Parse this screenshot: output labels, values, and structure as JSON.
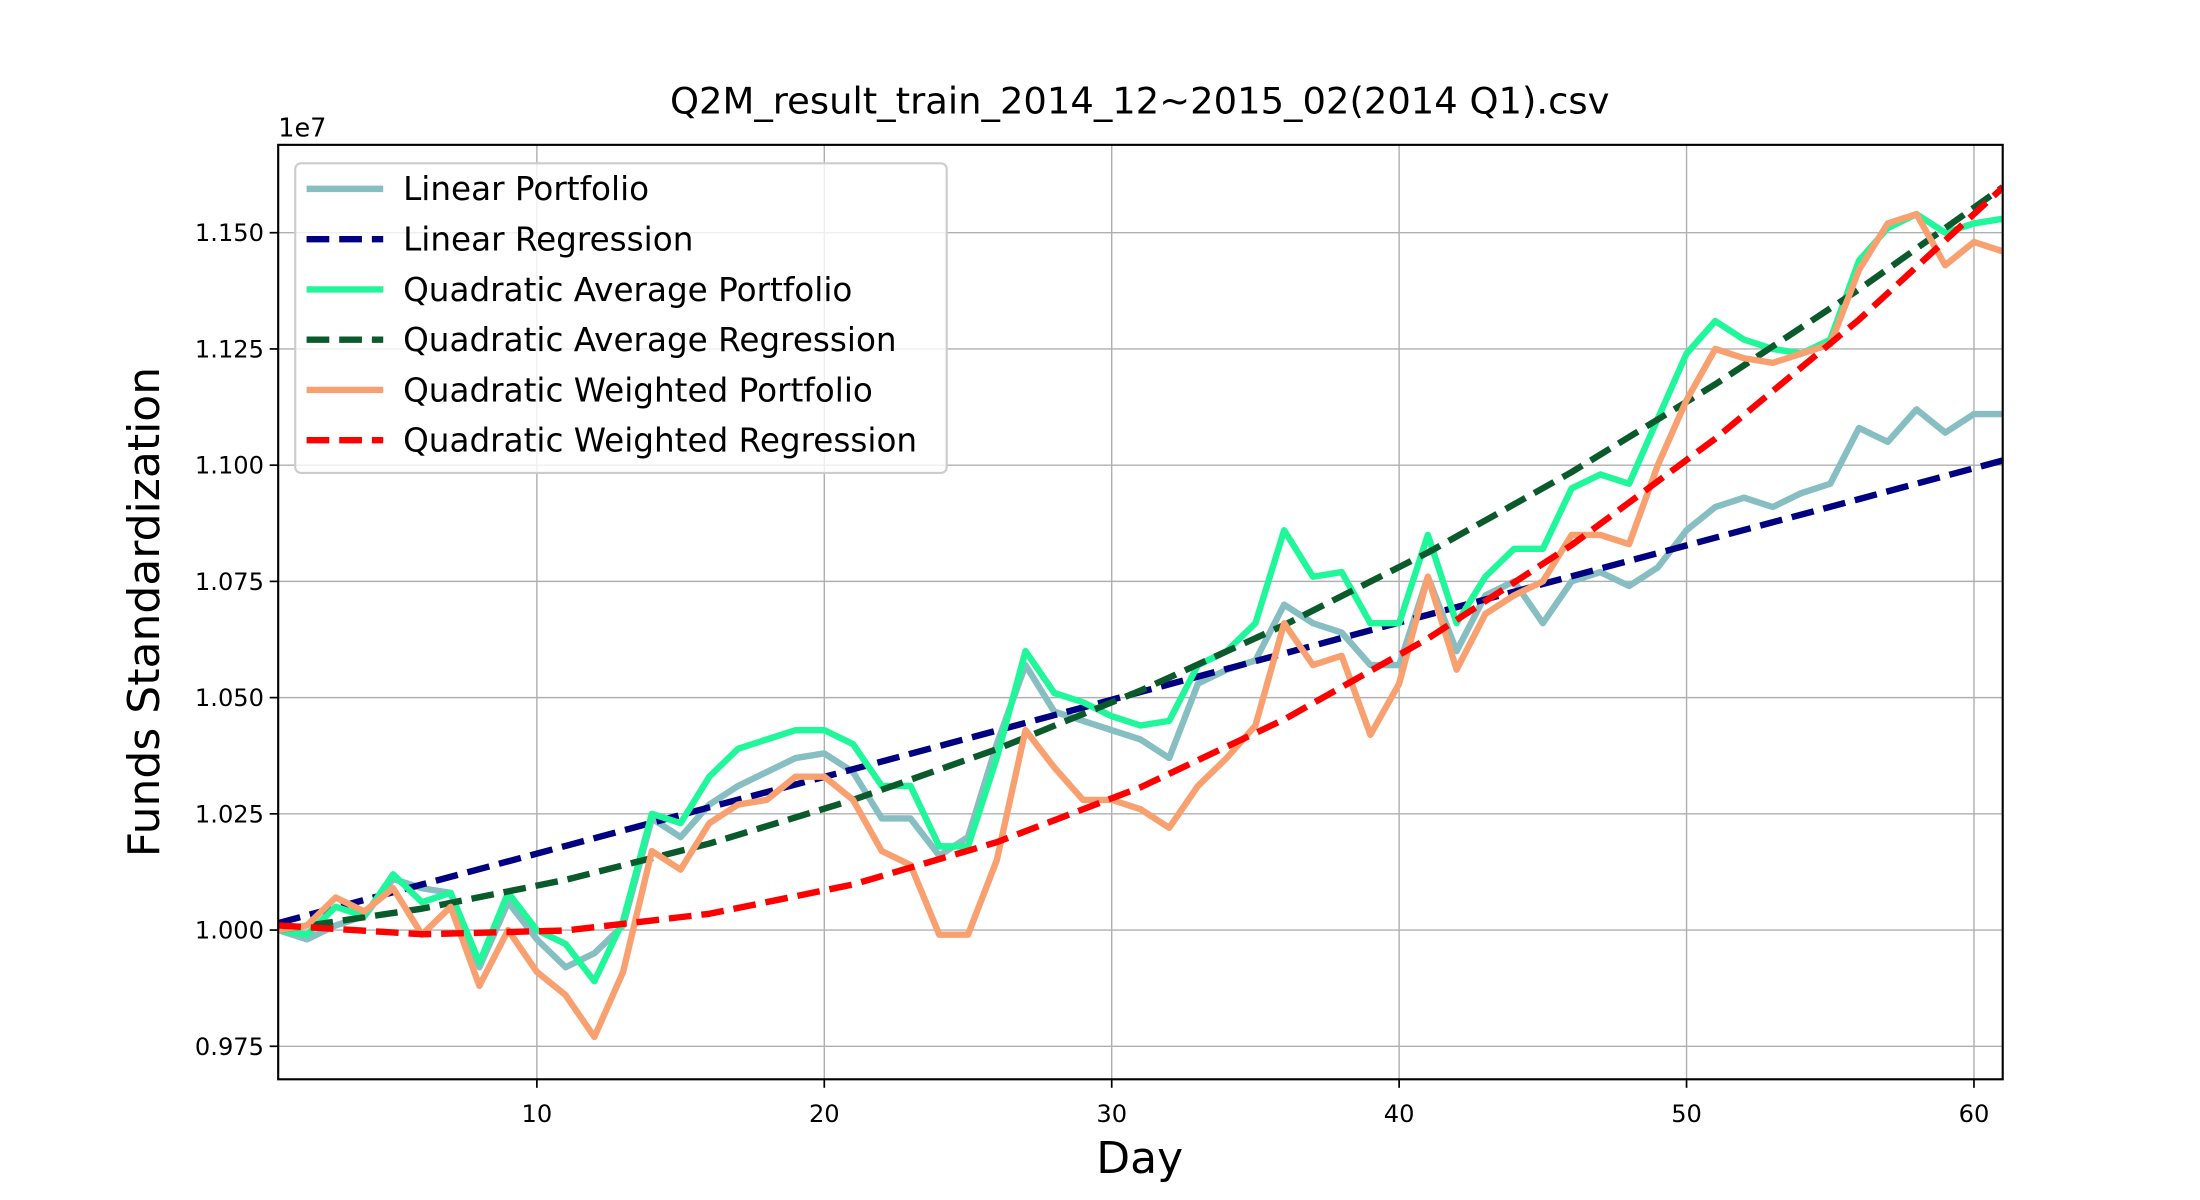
{
  "chart_data": {
    "type": "line",
    "title": "Q2M_result_train_2014_12~2015_02(2014 Q1).csv",
    "xlabel": "Day",
    "ylabel": "Funds Standardization",
    "y_offset_label": "1e7",
    "grid": true,
    "legend": "upper left",
    "xlim": [
      1,
      61
    ],
    "ylim": [
      0.9679,
      1.1689
    ],
    "xticks": [
      10,
      20,
      30,
      40,
      50,
      60
    ],
    "yticks": [
      {
        "value": 0.975,
        "label": "0.975"
      },
      {
        "value": 1.0,
        "label": "1.000"
      },
      {
        "value": 1.025,
        "label": "1.025"
      },
      {
        "value": 1.05,
        "label": "1.050"
      },
      {
        "value": 1.075,
        "label": "1.075"
      },
      {
        "value": 1.1,
        "label": "1.100"
      },
      {
        "value": 1.125,
        "label": "1.125"
      },
      {
        "value": 1.15,
        "label": "1.150"
      }
    ],
    "x": [
      1,
      2,
      3,
      4,
      5,
      6,
      7,
      8,
      9,
      10,
      11,
      12,
      13,
      14,
      15,
      16,
      17,
      18,
      19,
      20,
      21,
      22,
      23,
      24,
      25,
      26,
      27,
      28,
      29,
      30,
      31,
      32,
      33,
      34,
      35,
      36,
      37,
      38,
      39,
      40,
      41,
      42,
      43,
      44,
      45,
      46,
      47,
      48,
      49,
      50,
      51,
      52,
      53,
      54,
      55,
      56,
      57,
      58,
      59,
      60,
      61
    ],
    "series": [
      {
        "name": "Linear Portfolio",
        "color": "#86bec1",
        "linestyle": "solid",
        "values": [
          1.0,
          0.998,
          1.001,
          1.003,
          1.011,
          1.009,
          1.008,
          0.992,
          1.006,
          0.998,
          0.992,
          0.995,
          1.001,
          1.024,
          1.02,
          1.027,
          1.031,
          1.034,
          1.037,
          1.038,
          1.034,
          1.024,
          1.024,
          1.016,
          1.02,
          1.04,
          1.057,
          1.047,
          1.045,
          1.043,
          1.041,
          1.037,
          1.053,
          1.056,
          1.058,
          1.07,
          1.066,
          1.064,
          1.057,
          1.057,
          1.076,
          1.06,
          1.072,
          1.075,
          1.066,
          1.075,
          1.077,
          1.074,
          1.078,
          1.086,
          1.091,
          1.093,
          1.091,
          1.094,
          1.096,
          1.108,
          1.105,
          1.112,
          1.107,
          1.111,
          1.111
        ]
      },
      {
        "name": "Linear Regression",
        "color": "#000080",
        "linestyle": "dashed",
        "x": [
          1,
          6,
          11,
          16,
          21,
          26,
          31,
          36,
          41,
          46,
          51,
          56,
          61
        ],
        "values": [
          1.0015,
          1.0098,
          1.0181,
          1.0264,
          1.0346,
          1.0429,
          1.0512,
          1.0595,
          1.0678,
          1.0761,
          1.0844,
          1.0927,
          1.101
        ]
      },
      {
        "name": "Quadratic Average Portfolio",
        "color": "#1ff79a",
        "linestyle": "solid",
        "values": [
          1.0,
          0.999,
          1.005,
          1.003,
          1.012,
          1.006,
          1.008,
          0.993,
          1.008,
          1.0,
          0.997,
          0.989,
          1.002,
          1.025,
          1.023,
          1.033,
          1.039,
          1.041,
          1.043,
          1.043,
          1.04,
          1.031,
          1.031,
          1.018,
          1.018,
          1.037,
          1.06,
          1.051,
          1.049,
          1.046,
          1.044,
          1.045,
          1.057,
          1.06,
          1.066,
          1.086,
          1.076,
          1.077,
          1.066,
          1.066,
          1.085,
          1.066,
          1.076,
          1.082,
          1.082,
          1.095,
          1.098,
          1.096,
          1.11,
          1.124,
          1.131,
          1.127,
          1.125,
          1.124,
          1.127,
          1.144,
          1.151,
          1.154,
          1.15,
          1.152,
          1.153
        ]
      },
      {
        "name": "Quadratic Average Regression",
        "color": "#0b5a2c",
        "linestyle": "dashed",
        "x": [
          1,
          6,
          11,
          16,
          21,
          26,
          31,
          36,
          41,
          46,
          51,
          56,
          61
        ],
        "values": [
          1.0,
          1.0046,
          1.0108,
          1.0186,
          1.028,
          1.0389,
          1.0515,
          1.0656,
          1.0812,
          1.0985,
          1.1174,
          1.1378,
          1.1598
        ]
      },
      {
        "name": "Quadratic Weighted Portfolio",
        "color": "#f9a070",
        "linestyle": "solid",
        "values": [
          1.0,
          1.001,
          1.007,
          1.004,
          1.009,
          0.999,
          1.005,
          0.988,
          1.0,
          0.991,
          0.986,
          0.977,
          0.991,
          1.017,
          1.013,
          1.023,
          1.027,
          1.028,
          1.033,
          1.033,
          1.028,
          1.017,
          1.014,
          0.999,
          0.999,
          1.015,
          1.043,
          1.035,
          1.028,
          1.028,
          1.026,
          1.022,
          1.031,
          1.037,
          1.044,
          1.066,
          1.057,
          1.059,
          1.042,
          1.053,
          1.076,
          1.056,
          1.068,
          1.072,
          1.075,
          1.085,
          1.085,
          1.083,
          1.1,
          1.114,
          1.125,
          1.123,
          1.122,
          1.124,
          1.126,
          1.142,
          1.152,
          1.154,
          1.143,
          1.148,
          1.146
        ]
      },
      {
        "name": "Quadratic Weighted Regression",
        "color": "#ff0000",
        "linestyle": "dashed",
        "x": [
          1,
          6,
          11,
          16,
          21,
          26,
          31,
          36,
          41,
          46,
          51,
          56,
          61
        ],
        "values": [
          1.001,
          0.9991,
          0.9999,
          1.0035,
          1.0098,
          1.0189,
          1.0307,
          1.0453,
          1.0627,
          1.0828,
          1.1057,
          1.1313,
          1.1597
        ]
      }
    ]
  }
}
